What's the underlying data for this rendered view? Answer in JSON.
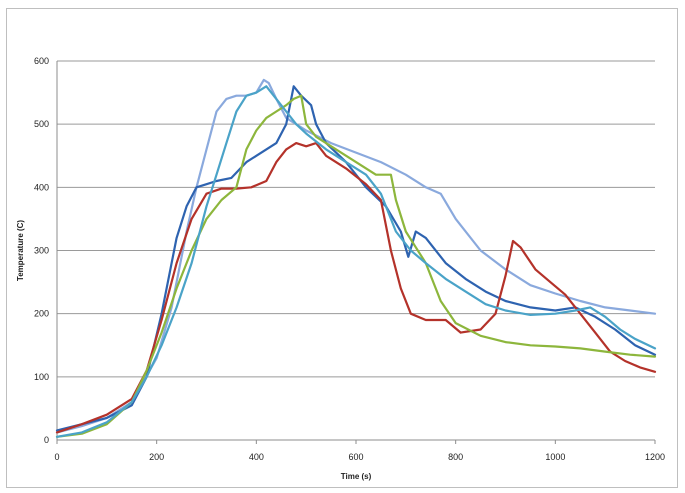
{
  "chart_data": {
    "type": "line",
    "title": "",
    "xlabel": "Time (s)",
    "ylabel": "Temperature (C)",
    "xlim": [
      0,
      1200
    ],
    "ylim": [
      0,
      600
    ],
    "x_ticks": [
      0,
      200,
      400,
      600,
      800,
      1000,
      1200
    ],
    "y_ticks": [
      0,
      100,
      200,
      300,
      400,
      500,
      600
    ],
    "grid": "horizontal",
    "legend": "none",
    "series": [
      {
        "color": "#8aa9dd",
        "points": [
          [
            0,
            12
          ],
          [
            50,
            22
          ],
          [
            100,
            35
          ],
          [
            150,
            60
          ],
          [
            200,
            130
          ],
          [
            230,
            210
          ],
          [
            260,
            330
          ],
          [
            280,
            400
          ],
          [
            300,
            460
          ],
          [
            320,
            520
          ],
          [
            340,
            540
          ],
          [
            360,
            545
          ],
          [
            380,
            545
          ],
          [
            400,
            550
          ],
          [
            415,
            570
          ],
          [
            425,
            565
          ],
          [
            440,
            540
          ],
          [
            460,
            510
          ],
          [
            480,
            500
          ],
          [
            500,
            490
          ],
          [
            550,
            470
          ],
          [
            600,
            455
          ],
          [
            650,
            440
          ],
          [
            700,
            420
          ],
          [
            740,
            400
          ],
          [
            770,
            390
          ],
          [
            800,
            350
          ],
          [
            850,
            300
          ],
          [
            900,
            270
          ],
          [
            950,
            245
          ],
          [
            1000,
            232
          ],
          [
            1050,
            220
          ],
          [
            1100,
            210
          ],
          [
            1150,
            205
          ],
          [
            1200,
            200
          ]
        ]
      },
      {
        "color": "#2e63b0",
        "points": [
          [
            0,
            15
          ],
          [
            50,
            25
          ],
          [
            100,
            35
          ],
          [
            150,
            55
          ],
          [
            180,
            100
          ],
          [
            210,
            200
          ],
          [
            240,
            320
          ],
          [
            260,
            370
          ],
          [
            280,
            400
          ],
          [
            300,
            405
          ],
          [
            320,
            410
          ],
          [
            350,
            415
          ],
          [
            380,
            440
          ],
          [
            400,
            450
          ],
          [
            420,
            460
          ],
          [
            440,
            470
          ],
          [
            460,
            500
          ],
          [
            475,
            560
          ],
          [
            490,
            545
          ],
          [
            510,
            530
          ],
          [
            520,
            500
          ],
          [
            540,
            470
          ],
          [
            580,
            440
          ],
          [
            620,
            400
          ],
          [
            660,
            370
          ],
          [
            690,
            330
          ],
          [
            705,
            290
          ],
          [
            720,
            330
          ],
          [
            740,
            320
          ],
          [
            780,
            280
          ],
          [
            820,
            255
          ],
          [
            860,
            235
          ],
          [
            900,
            220
          ],
          [
            950,
            210
          ],
          [
            1000,
            205
          ],
          [
            1040,
            210
          ],
          [
            1080,
            195
          ],
          [
            1120,
            175
          ],
          [
            1160,
            150
          ],
          [
            1200,
            135
          ]
        ]
      },
      {
        "color": "#b4322a",
        "points": [
          [
            0,
            12
          ],
          [
            50,
            25
          ],
          [
            100,
            40
          ],
          [
            150,
            65
          ],
          [
            180,
            110
          ],
          [
            210,
            190
          ],
          [
            240,
            280
          ],
          [
            270,
            350
          ],
          [
            300,
            390
          ],
          [
            330,
            398
          ],
          [
            360,
            398
          ],
          [
            390,
            400
          ],
          [
            420,
            410
          ],
          [
            440,
            440
          ],
          [
            460,
            460
          ],
          [
            480,
            470
          ],
          [
            500,
            465
          ],
          [
            520,
            470
          ],
          [
            540,
            450
          ],
          [
            580,
            430
          ],
          [
            620,
            405
          ],
          [
            650,
            380
          ],
          [
            670,
            300
          ],
          [
            690,
            240
          ],
          [
            710,
            200
          ],
          [
            740,
            190
          ],
          [
            780,
            190
          ],
          [
            810,
            170
          ],
          [
            850,
            175
          ],
          [
            880,
            200
          ],
          [
            900,
            260
          ],
          [
            915,
            315
          ],
          [
            930,
            305
          ],
          [
            960,
            270
          ],
          [
            990,
            250
          ],
          [
            1020,
            230
          ],
          [
            1050,
            200
          ],
          [
            1080,
            170
          ],
          [
            1110,
            140
          ],
          [
            1140,
            125
          ],
          [
            1170,
            115
          ],
          [
            1200,
            108
          ]
        ]
      },
      {
        "color": "#8db63c",
        "points": [
          [
            0,
            5
          ],
          [
            50,
            10
          ],
          [
            100,
            25
          ],
          [
            150,
            60
          ],
          [
            180,
            110
          ],
          [
            210,
            170
          ],
          [
            240,
            240
          ],
          [
            270,
            300
          ],
          [
            300,
            350
          ],
          [
            330,
            380
          ],
          [
            360,
            400
          ],
          [
            380,
            460
          ],
          [
            400,
            490
          ],
          [
            420,
            510
          ],
          [
            440,
            520
          ],
          [
            460,
            530
          ],
          [
            475,
            540
          ],
          [
            490,
            545
          ],
          [
            500,
            500
          ],
          [
            520,
            480
          ],
          [
            560,
            460
          ],
          [
            600,
            440
          ],
          [
            640,
            420
          ],
          [
            670,
            420
          ],
          [
            680,
            380
          ],
          [
            700,
            330
          ],
          [
            720,
            305
          ],
          [
            740,
            280
          ],
          [
            770,
            220
          ],
          [
            800,
            185
          ],
          [
            850,
            165
          ],
          [
            900,
            155
          ],
          [
            950,
            150
          ],
          [
            1000,
            148
          ],
          [
            1050,
            145
          ],
          [
            1100,
            140
          ],
          [
            1150,
            135
          ],
          [
            1200,
            132
          ]
        ]
      },
      {
        "color": "#4aa3c8",
        "points": [
          [
            0,
            5
          ],
          [
            50,
            12
          ],
          [
            100,
            28
          ],
          [
            150,
            60
          ],
          [
            180,
            100
          ],
          [
            210,
            150
          ],
          [
            240,
            210
          ],
          [
            270,
            280
          ],
          [
            300,
            370
          ],
          [
            320,
            420
          ],
          [
            340,
            470
          ],
          [
            360,
            520
          ],
          [
            380,
            545
          ],
          [
            400,
            550
          ],
          [
            420,
            560
          ],
          [
            440,
            540
          ],
          [
            460,
            520
          ],
          [
            480,
            500
          ],
          [
            500,
            485
          ],
          [
            540,
            460
          ],
          [
            580,
            440
          ],
          [
            620,
            420
          ],
          [
            650,
            390
          ],
          [
            680,
            330
          ],
          [
            710,
            300
          ],
          [
            740,
            280
          ],
          [
            780,
            255
          ],
          [
            820,
            235
          ],
          [
            860,
            215
          ],
          [
            900,
            205
          ],
          [
            950,
            198
          ],
          [
            1000,
            200
          ],
          [
            1040,
            205
          ],
          [
            1070,
            210
          ],
          [
            1100,
            195
          ],
          [
            1130,
            175
          ],
          [
            1160,
            160
          ],
          [
            1200,
            145
          ]
        ]
      }
    ]
  }
}
